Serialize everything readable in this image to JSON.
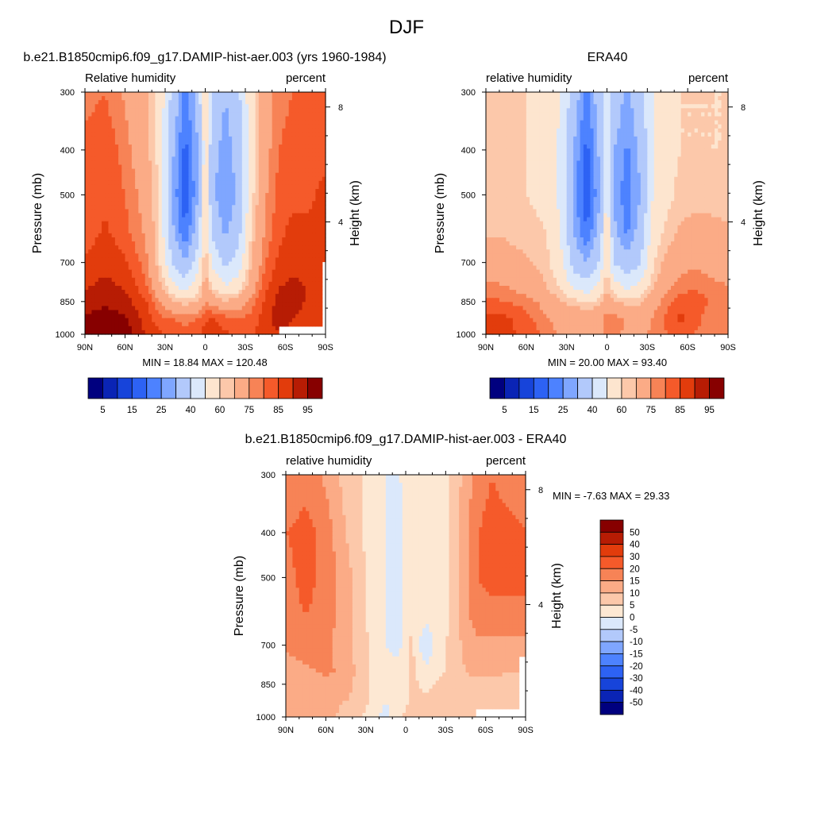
{
  "figure": {
    "title": "DJF"
  },
  "colors": {
    "abs_scale": [
      "#00007f",
      "#0a24b5",
      "#1744da",
      "#2d62f4",
      "#4d82ff",
      "#7fa6ff",
      "#b2c9fb",
      "#dbe8fb",
      "#fde5cf",
      "#fcc8aa",
      "#fbab86",
      "#f78356",
      "#f55a2a",
      "#e23c0c",
      "#b71c04",
      "#870000"
    ],
    "diff_scale": [
      "#00007f",
      "#0a24b5",
      "#1744da",
      "#2d62f4",
      "#4d82ff",
      "#7fa6ff",
      "#b2c9fb",
      "#dbe8fb",
      "#fde8d3",
      "#fcc8aa",
      "#fbab86",
      "#f78356",
      "#f55a2a",
      "#e23c0c",
      "#b71c04",
      "#870000"
    ]
  },
  "chart_data": [
    {
      "type": "heatmap",
      "title": "b.e21.B1850cmip6.f09_g17.DAMIP-hist-aer.003 (yrs 1960-1984)",
      "left_label": "Relative humidity",
      "right_label": "percent",
      "ylabel": "Pressure (mb)",
      "y2label": "Height (km)",
      "x_ticks": [
        "90N",
        "60N",
        "30N",
        "0",
        "30S",
        "60S",
        "90S"
      ],
      "x_values": [
        90,
        60,
        30,
        0,
        -30,
        -60,
        -90
      ],
      "y_ticks": [
        "300",
        "400",
        "500",
        "700",
        "850",
        "1000"
      ],
      "y_values": [
        300,
        400,
        500,
        700,
        850,
        1000
      ],
      "y2_ticks": [
        "8",
        "4"
      ],
      "y2_values": [
        8,
        4
      ],
      "min_label": "MIN = 18.84 MAX = 120.48",
      "min": 18.84,
      "max": 120.48,
      "colorbar_labels": [
        "5",
        "15",
        "25",
        "40",
        "60",
        "75",
        "85",
        "95"
      ],
      "levels": [
        5,
        10,
        15,
        20,
        25,
        30,
        40,
        50,
        60,
        65,
        75,
        80,
        85,
        90,
        95
      ],
      "lat_grid": [
        90,
        75,
        60,
        45,
        35,
        25,
        15,
        5,
        0,
        -5,
        -15,
        -25,
        -35,
        -45,
        -55,
        -65,
        -75,
        -90
      ],
      "p_grid": [
        300,
        400,
        500,
        600,
        700,
        800,
        850,
        925,
        1000
      ],
      "values": [
        [
          78,
          80,
          74,
          66,
          58,
          38,
          22,
          35,
          58,
          40,
          30,
          38,
          58,
          72,
          78,
          80,
          80,
          82
        ],
        [
          82,
          84,
          78,
          68,
          58,
          32,
          18,
          30,
          56,
          34,
          26,
          34,
          56,
          72,
          80,
          82,
          84,
          84
        ],
        [
          80,
          84,
          80,
          72,
          60,
          30,
          16,
          30,
          58,
          32,
          24,
          32,
          58,
          74,
          82,
          84,
          84,
          86
        ],
        [
          82,
          86,
          82,
          74,
          60,
          32,
          20,
          36,
          62,
          38,
          28,
          36,
          62,
          76,
          84,
          86,
          86,
          86
        ],
        [
          86,
          88,
          86,
          78,
          62,
          40,
          30,
          46,
          66,
          48,
          38,
          44,
          66,
          80,
          86,
          88,
          88,
          86
        ],
        [
          90,
          92,
          90,
          82,
          70,
          56,
          48,
          58,
          70,
          62,
          52,
          58,
          72,
          84,
          90,
          92,
          90,
          88
        ],
        [
          92,
          94,
          92,
          86,
          76,
          66,
          62,
          66,
          74,
          72,
          66,
          70,
          78,
          86,
          92,
          92,
          90,
          88
        ],
        [
          96,
          98,
          96,
          88,
          82,
          80,
          78,
          80,
          84,
          86,
          82,
          80,
          82,
          88,
          92,
          90,
          88,
          88
        ],
        [
          98,
          99,
          98,
          90,
          86,
          84,
          82,
          84,
          88,
          88,
          86,
          84,
          84,
          88,
          90,
          88,
          88,
          88
        ]
      ],
      "missing": [
        {
          "lat_from": -55,
          "lat_to": -90,
          "p_from": 960,
          "p_to": 1000
        },
        {
          "lat_from": -87,
          "lat_to": -90,
          "p_from": 700,
          "p_to": 1000
        }
      ]
    },
    {
      "type": "heatmap",
      "title": "ERA40",
      "left_label": "relative humidity",
      "right_label": "percent",
      "ylabel": "Pressure (mb)",
      "y2label": "Height (km)",
      "x_ticks": [
        "90N",
        "60N",
        "30N",
        "0",
        "30S",
        "60S",
        "90S"
      ],
      "x_values": [
        90,
        60,
        30,
        0,
        -30,
        -60,
        -90
      ],
      "y_ticks": [
        "300",
        "400",
        "500",
        "700",
        "850",
        "1000"
      ],
      "y_values": [
        300,
        400,
        500,
        700,
        850,
        1000
      ],
      "y2_ticks": [
        "8",
        "4"
      ],
      "y2_values": [
        8,
        4
      ],
      "min_label": "MIN = 20.00 MAX = 93.40",
      "min": 20.0,
      "max": 93.4,
      "colorbar_labels": [
        "5",
        "15",
        "25",
        "40",
        "60",
        "75",
        "85",
        "95"
      ],
      "levels": [
        5,
        10,
        15,
        20,
        25,
        30,
        40,
        50,
        60,
        65,
        75,
        80,
        85,
        90,
        95
      ],
      "lat_grid": [
        90,
        75,
        60,
        45,
        35,
        25,
        15,
        5,
        0,
        -5,
        -15,
        -25,
        -35,
        -45,
        -55,
        -65,
        -75,
        -90
      ],
      "p_grid": [
        300,
        400,
        500,
        600,
        700,
        800,
        850,
        925,
        1000
      ],
      "values": [
        [
          62,
          62,
          60,
          58,
          50,
          36,
          22,
          36,
          52,
          36,
          28,
          36,
          52,
          60,
          60,
          60,
          60,
          60
        ],
        [
          62,
          62,
          60,
          58,
          48,
          30,
          18,
          32,
          52,
          30,
          24,
          32,
          50,
          58,
          60,
          60,
          60,
          60
        ],
        [
          62,
          62,
          60,
          58,
          48,
          28,
          16,
          30,
          54,
          28,
          22,
          30,
          52,
          58,
          62,
          62,
          62,
          62
        ],
        [
          64,
          64,
          62,
          60,
          50,
          30,
          20,
          34,
          58,
          32,
          24,
          34,
          56,
          62,
          66,
          68,
          68,
          66
        ],
        [
          70,
          68,
          66,
          62,
          54,
          36,
          30,
          42,
          62,
          40,
          32,
          40,
          60,
          68,
          72,
          74,
          72,
          70
        ],
        [
          78,
          76,
          72,
          66,
          60,
          50,
          46,
          54,
          66,
          56,
          50,
          54,
          66,
          74,
          78,
          80,
          78,
          76
        ],
        [
          82,
          80,
          78,
          72,
          66,
          62,
          60,
          62,
          70,
          66,
          62,
          64,
          72,
          78,
          84,
          84,
          80,
          78
        ],
        [
          86,
          86,
          82,
          76,
          72,
          72,
          72,
          72,
          78,
          78,
          74,
          72,
          76,
          82,
          86,
          82,
          78,
          78
        ],
        [
          88,
          86,
          84,
          78,
          74,
          74,
          74,
          74,
          76,
          76,
          74,
          74,
          76,
          80,
          82,
          80,
          78,
          78
        ]
      ],
      "missing": []
    },
    {
      "type": "heatmap",
      "title": "b.e21.B1850cmip6.f09_g17.DAMIP-hist-aer.003 - ERA40",
      "left_label": "relative humidity",
      "right_label": "percent",
      "ylabel": "Pressure (mb)",
      "y2label": "Height (km)",
      "x_ticks": [
        "90N",
        "60N",
        "30N",
        "0",
        "30S",
        "60S",
        "90S"
      ],
      "x_values": [
        90,
        60,
        30,
        0,
        -30,
        -60,
        -90
      ],
      "y_ticks": [
        "300",
        "400",
        "500",
        "700",
        "850",
        "1000"
      ],
      "y_values": [
        300,
        400,
        500,
        700,
        850,
        1000
      ],
      "y2_ticks": [
        "8",
        "4"
      ],
      "y2_values": [
        8,
        4
      ],
      "min_label": "MIN = -7.63 MAX = 29.33",
      "min": -7.63,
      "max": 29.33,
      "colorbar_labels": [
        "50",
        "40",
        "30",
        "20",
        "15",
        "10",
        "5",
        "0",
        "-5",
        "-10",
        "-15",
        "-20",
        "-30",
        "-40",
        "-50"
      ],
      "levels": [
        -50,
        -40,
        -30,
        -20,
        -15,
        -10,
        -5,
        0,
        5,
        10,
        15,
        20,
        30,
        40,
        50
      ],
      "lat_grid": [
        90,
        75,
        60,
        45,
        35,
        25,
        15,
        5,
        0,
        -5,
        -15,
        -25,
        -35,
        -45,
        -55,
        -65,
        -75,
        -90
      ],
      "p_grid": [
        300,
        400,
        500,
        600,
        700,
        800,
        850,
        925,
        1000
      ],
      "values": [
        [
          16,
          18,
          14,
          8,
          6,
          2,
          0,
          -1,
          4,
          4,
          2,
          2,
          6,
          12,
          18,
          20,
          18,
          18
        ],
        [
          20,
          22,
          18,
          10,
          6,
          2,
          0,
          -3,
          2,
          4,
          2,
          2,
          6,
          14,
          20,
          22,
          22,
          20
        ],
        [
          18,
          22,
          18,
          12,
          8,
          2,
          0,
          -3,
          2,
          4,
          2,
          2,
          6,
          14,
          20,
          22,
          22,
          22
        ],
        [
          18,
          20,
          18,
          12,
          8,
          2,
          0,
          -2,
          3,
          4,
          2,
          2,
          6,
          14,
          18,
          18,
          18,
          18
        ],
        [
          16,
          18,
          16,
          12,
          8,
          4,
          0,
          -2,
          4,
          6,
          -5,
          4,
          6,
          12,
          14,
          14,
          14,
          14
        ],
        [
          12,
          14,
          16,
          14,
          8,
          4,
          2,
          2,
          4,
          6,
          2,
          4,
          6,
          10,
          12,
          12,
          10,
          10
        ],
        [
          10,
          12,
          12,
          12,
          8,
          4,
          2,
          2,
          4,
          6,
          4,
          6,
          6,
          8,
          8,
          8,
          8,
          8
        ],
        [
          10,
          12,
          12,
          10,
          8,
          4,
          0,
          4,
          4,
          6,
          6,
          6,
          6,
          6,
          6,
          8,
          8,
          8
        ],
        [
          12,
          14,
          12,
          8,
          6,
          2,
          -2,
          4,
          6,
          8,
          8,
          6,
          6,
          6,
          6,
          8,
          8,
          8
        ]
      ],
      "missing": [
        {
          "lat_from": -52,
          "lat_to": -90,
          "p_from": 955,
          "p_to": 1000
        },
        {
          "lat_from": -85,
          "lat_to": -90,
          "p_from": 745,
          "p_to": 1000
        }
      ]
    }
  ]
}
